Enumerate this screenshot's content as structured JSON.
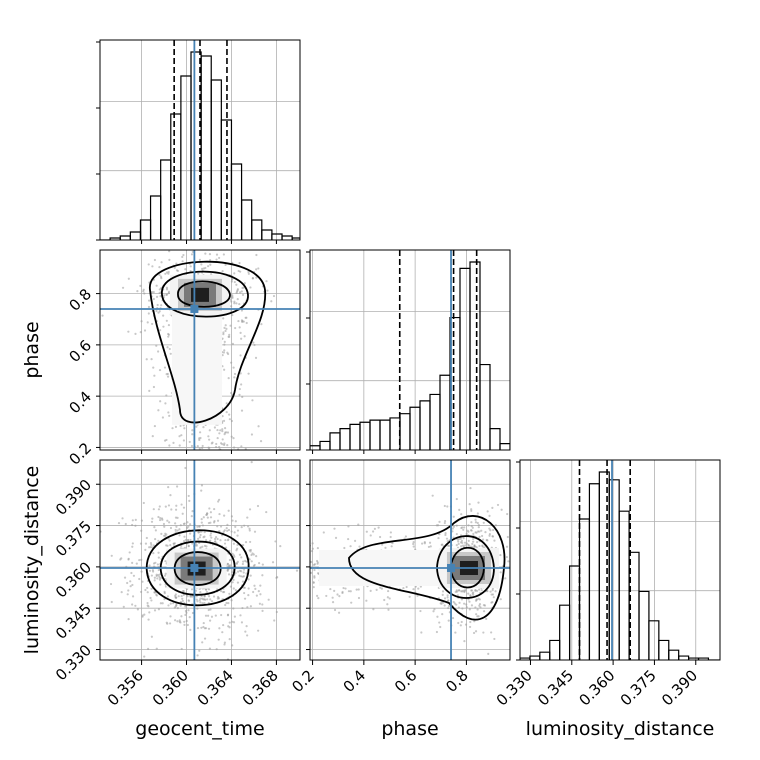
{
  "chart_data": {
    "type": "corner",
    "parameters": [
      "geocent_time",
      "phase",
      "luminosity_distance"
    ],
    "axis_labels": {
      "x": [
        "geocent_time",
        "phase",
        "luminosity_distance"
      ],
      "y": [
        "phase",
        "luminosity_distance"
      ]
    },
    "ranges": {
      "geocent_time": [
        0.3523,
        0.3701
      ],
      "phase": [
        0.19,
        0.97
      ],
      "luminosity_distance": [
        0.3262,
        0.3988
      ]
    },
    "ticks": {
      "geocent_time": [
        "0.356",
        "0.360",
        "0.364",
        "0.368"
      ],
      "phase": [
        "0.2",
        "0.4",
        "0.6",
        "0.8"
      ],
      "luminosity_distance": [
        "0.330",
        "0.345",
        "0.360",
        "0.375",
        "0.390"
      ]
    },
    "truths": {
      "geocent_time": 0.3607,
      "phase": 0.74,
      "luminosity_distance": 0.3596
    },
    "truth_color": "#4682b4",
    "grid": true,
    "marginals": {
      "geocent_time": {
        "quantiles": [
          0.3589,
          0.3612,
          0.3636
        ],
        "bins": [
          0.3523,
          0.3532,
          0.3541,
          0.355,
          0.3559,
          0.3568,
          0.3577,
          0.3586,
          0.3595,
          0.3604,
          0.3613,
          0.3622,
          0.3631,
          0.364,
          0.3649,
          0.3658,
          0.3667,
          0.3676,
          0.3685,
          0.3694,
          0.3701
        ],
        "counts": [
          0,
          1,
          2,
          4,
          10,
          22,
          40,
          63,
          82,
          94,
          92,
          80,
          60,
          38,
          20,
          10,
          5,
          3,
          2,
          1
        ]
      },
      "phase": {
        "quantiles": [
          0.54,
          0.75,
          0.84
        ],
        "bins": [
          0.19,
          0.229,
          0.268,
          0.307,
          0.346,
          0.385,
          0.424,
          0.463,
          0.502,
          0.541,
          0.58,
          0.619,
          0.658,
          0.697,
          0.736,
          0.775,
          0.814,
          0.853,
          0.892,
          0.931,
          0.97
        ],
        "counts": [
          2,
          4,
          8,
          10,
          12,
          13,
          14,
          14,
          15,
          17,
          20,
          23,
          26,
          35,
          62,
          85,
          88,
          40,
          10,
          3
        ]
      },
      "luminosity_distance": {
        "quantiles": [
          0.3478,
          0.3578,
          0.3662
        ],
        "bins": [
          0.3262,
          0.3298,
          0.3334,
          0.337,
          0.3406,
          0.3442,
          0.3478,
          0.3514,
          0.355,
          0.3586,
          0.3622,
          0.3658,
          0.3694,
          0.373,
          0.3766,
          0.3802,
          0.3838,
          0.3874,
          0.391,
          0.3946,
          0.3988
        ],
        "counts": [
          1,
          2,
          4,
          10,
          28,
          48,
          72,
          90,
          96,
          92,
          76,
          55,
          35,
          20,
          10,
          5,
          2,
          1,
          1,
          0
        ]
      }
    },
    "joint_2d": [
      {
        "x": "geocent_time",
        "y": "phase",
        "center": [
          0.3612,
          0.795
        ]
      },
      {
        "x": "geocent_time",
        "y": "luminosity_distance",
        "center": [
          0.3609,
          0.3594
        ]
      },
      {
        "x": "phase",
        "y": "luminosity_distance",
        "center": [
          0.81,
          0.3596
        ]
      }
    ]
  }
}
